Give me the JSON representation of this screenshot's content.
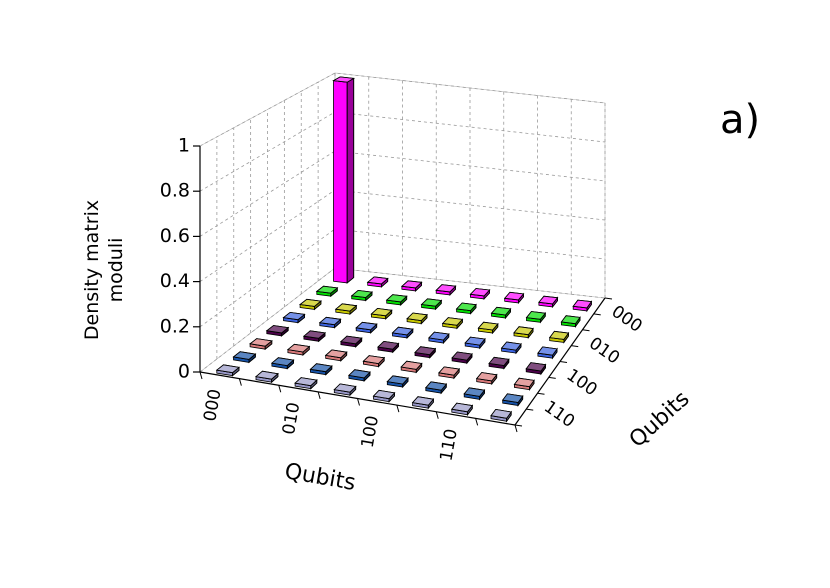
{
  "chart_data": {
    "type": "bar3d",
    "annotation": "a)",
    "x_categories": [
      "000",
      null,
      "010",
      null,
      "100",
      null,
      "110",
      null
    ],
    "y_categories": [
      "000",
      null,
      "010",
      null,
      "100",
      null,
      "110",
      null
    ],
    "xlabel": "Qubits",
    "ylabel": "Qubits",
    "zlabel": [
      "Density matrix",
      "moduli"
    ],
    "zlim": [
      0,
      1
    ],
    "zticks": [
      0,
      0.2,
      0.4,
      0.6,
      0.8,
      1
    ],
    "grid": true,
    "row_colors": [
      "#ff00ff",
      "#00dd00",
      "#c8c800",
      "#3a62e0",
      "#4a0048",
      "#d87878",
      "#1552a8",
      "#9898c8"
    ],
    "values": [
      [
        1,
        0,
        0,
        0,
        0,
        0,
        0,
        0
      ],
      [
        0,
        0,
        0,
        0,
        0,
        0,
        0,
        0
      ],
      [
        0,
        0,
        0,
        0,
        0,
        0,
        0,
        0
      ],
      [
        0,
        0,
        0,
        0,
        0,
        0,
        0,
        0
      ],
      [
        0,
        0,
        0,
        0,
        0,
        0,
        0,
        0
      ],
      [
        0,
        0,
        0,
        0,
        0,
        0,
        0,
        0
      ],
      [
        0,
        0,
        0,
        0,
        0,
        0,
        0,
        0
      ],
      [
        0,
        0,
        0,
        0,
        0,
        0,
        0,
        0
      ]
    ]
  }
}
